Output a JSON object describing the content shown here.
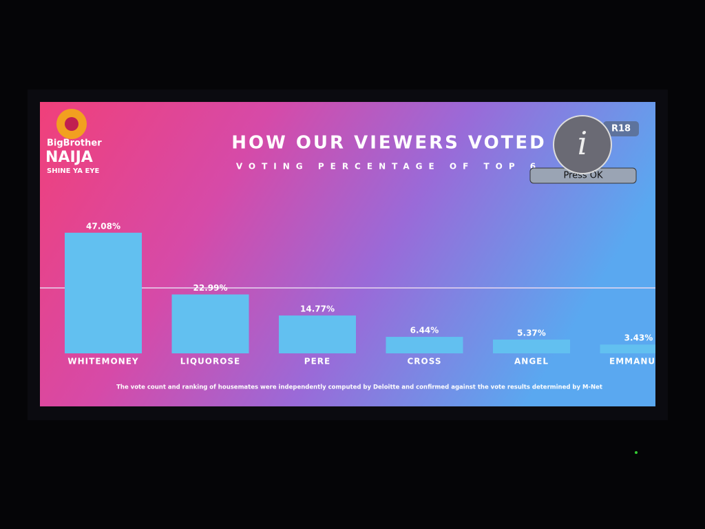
{
  "chart_data": {
    "type": "bar",
    "title": "HOW OUR VIEWERS VOTED",
    "subtitle": "VOTING PERCENTAGE OF TOP 6",
    "categories": [
      "WHITEMONEY",
      "LIQUOROSE",
      "PERE",
      "CROSS",
      "ANGEL",
      "EMMANUEL"
    ],
    "values": [
      47.08,
      22.99,
      14.77,
      6.44,
      5.37,
      3.43
    ],
    "value_labels": [
      "47.08%",
      "22.99%",
      "14.77%",
      "6.44%",
      "5.37%",
      "3.43%"
    ],
    "color": "#62c0f0",
    "note": "The vote count and ranking of housemates were independently computed by Deloitte and confirmed against the vote results determined by M-Net"
  },
  "logo": {
    "brand": "BigBrother",
    "name": "NAIJA",
    "tagline": "SHINE YA EYE"
  },
  "overlay": {
    "rating": "R18",
    "prompt": "Press OK"
  }
}
